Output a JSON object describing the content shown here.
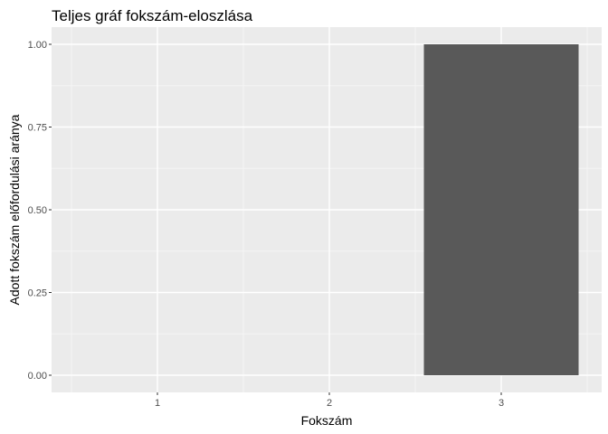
{
  "chart_data": {
    "type": "bar",
    "title": "Teljes gráf fokszám-eloszlása",
    "xlabel": "Fokszám",
    "ylabel": "Adott fokszám előfordulási aránya",
    "categories": [
      "1",
      "2",
      "3"
    ],
    "values": [
      0,
      0,
      1.0
    ],
    "ylim": [
      0,
      1.0
    ],
    "yticks": [
      "0.00",
      "0.25",
      "0.50",
      "0.75",
      "1.00"
    ],
    "grid": true,
    "legend": "none",
    "colors": {
      "panel_background": "#EBEBEB",
      "grid_major": "#FFFFFF",
      "grid_minor": "#F5F5F5",
      "bar_fill": "#595959",
      "tick_text": "#4D4D4D",
      "tick_mark": "#333333"
    }
  }
}
